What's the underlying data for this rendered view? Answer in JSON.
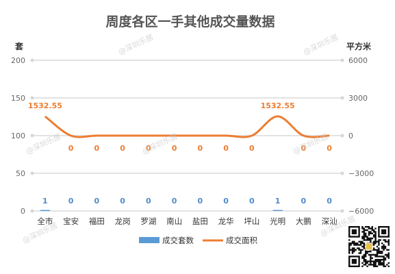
{
  "chart_data": {
    "type": "bar",
    "title": "周度各区一手其他成交量数据",
    "categories": [
      "全市",
      "宝安",
      "福田",
      "龙岗",
      "罗湖",
      "南山",
      "盐田",
      "龙华",
      "坪山",
      "光明",
      "大鹏",
      "深汕"
    ],
    "series": [
      {
        "name": "成交套数",
        "type": "bar",
        "axis": "left",
        "color": "#5b9bd5",
        "values": [
          1,
          0,
          0,
          0,
          0,
          0,
          0,
          0,
          0,
          1,
          0,
          0
        ],
        "labels": [
          "1",
          "0",
          "0",
          "0",
          "0",
          "0",
          "0",
          "0",
          "0",
          "1",
          "0",
          "0"
        ]
      },
      {
        "name": "成交面积",
        "type": "line",
        "axis": "right",
        "color": "#ed7d31",
        "values": [
          1532.55,
          0,
          0,
          0,
          0,
          0,
          0,
          0,
          0,
          1532.55,
          0,
          0
        ],
        "labels": [
          "1532.55",
          "0",
          "0",
          "0",
          "0",
          "0",
          "0",
          "0",
          "0",
          "1532.55",
          "0",
          "0"
        ]
      }
    ],
    "y_left": {
      "label": "套",
      "min": 0,
      "max": 200,
      "ticks": [
        "0",
        "50",
        "100",
        "150",
        "200"
      ]
    },
    "y_right": {
      "label": "平方米",
      "min": -6000,
      "max": 6000,
      "ticks": [
        "−6000",
        "−3000",
        "0",
        "3000",
        "6000"
      ]
    },
    "grid": true,
    "legend": "bottom"
  },
  "watermark": "@深圳乐居"
}
